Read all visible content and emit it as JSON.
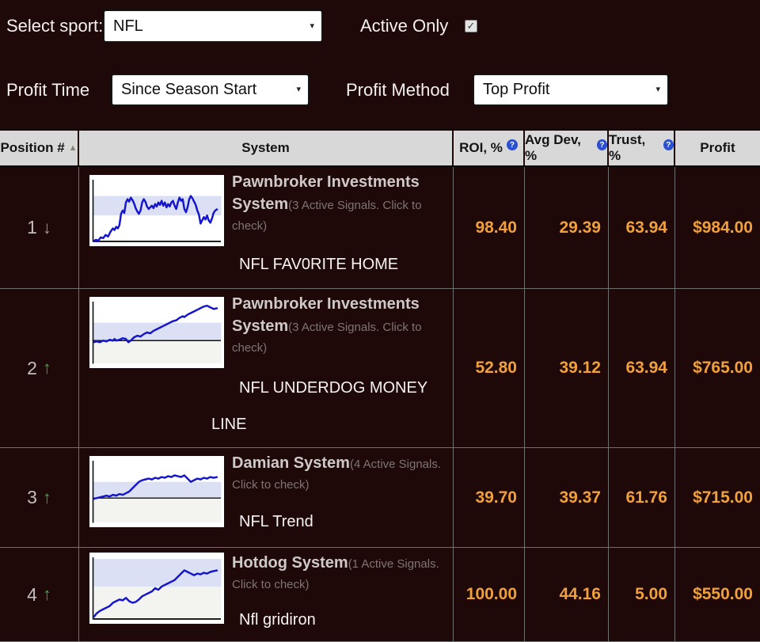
{
  "controls": {
    "select_sport_label": "Select sport:",
    "sport_value": "NFL",
    "active_only_label": "Active Only",
    "active_only_checked": true,
    "checkmark": "✓",
    "profit_time_label": "Profit Time",
    "profit_time_value": "Since Season Start",
    "profit_method_label": "Profit Method",
    "profit_method_value": "Top Profit",
    "caret": "▾"
  },
  "table": {
    "headers": {
      "position": "Position #",
      "system": "System",
      "roi": "ROI, %",
      "avg_dev": "Avg Dev, %",
      "trust": "Trust, %",
      "profit": "Profit"
    },
    "sort_icon": "▲",
    "help_icon": "?",
    "rows": [
      {
        "position": "1",
        "trend": "down",
        "name": "Pawnbroker Investments System",
        "signals_note": "(3 Active Signals. Click to check)",
        "subtitle": "NFL FAV0RITE HOME",
        "roi": "98.40",
        "avg_dev": "29.39",
        "trust": "63.94",
        "profit": "$984.00",
        "spark": {
          "band": [
            22,
            46
          ],
          "baseline": null,
          "x_axis": true,
          "gray_below": null,
          "points": [
            [
              2,
              78
            ],
            [
              5,
              76
            ],
            [
              8,
              77
            ],
            [
              11,
              73
            ],
            [
              14,
              74
            ],
            [
              17,
              70
            ],
            [
              20,
              72
            ],
            [
              23,
              66
            ],
            [
              26,
              62
            ],
            [
              28,
              64
            ],
            [
              30,
              60
            ],
            [
              32,
              62
            ],
            [
              34,
              58
            ],
            [
              36,
              44
            ],
            [
              38,
              40
            ],
            [
              40,
              43
            ],
            [
              42,
              30
            ],
            [
              44,
              26
            ],
            [
              46,
              29
            ],
            [
              48,
              24
            ],
            [
              50,
              27
            ],
            [
              52,
              31
            ],
            [
              54,
              37
            ],
            [
              56,
              41
            ],
            [
              58,
              44
            ],
            [
              60,
              40
            ],
            [
              62,
              30
            ],
            [
              64,
              26
            ],
            [
              66,
              29
            ],
            [
              68,
              35
            ],
            [
              70,
              38
            ],
            [
              72,
              36
            ],
            [
              74,
              34
            ],
            [
              76,
              37
            ],
            [
              78,
              32
            ],
            [
              80,
              35
            ],
            [
              82,
              30
            ],
            [
              84,
              33
            ],
            [
              86,
              28
            ],
            [
              88,
              34
            ],
            [
              90,
              30
            ],
            [
              92,
              36
            ],
            [
              94,
              32
            ],
            [
              96,
              35
            ],
            [
              98,
              30
            ],
            [
              100,
              28
            ],
            [
              102,
              34
            ],
            [
              104,
              38
            ],
            [
              106,
              30
            ],
            [
              108,
              24
            ],
            [
              110,
              28
            ],
            [
              112,
              26
            ],
            [
              114,
              38
            ],
            [
              116,
              42
            ],
            [
              118,
              36
            ],
            [
              120,
              26
            ],
            [
              122,
              22
            ],
            [
              124,
              25
            ],
            [
              126,
              29
            ],
            [
              128,
              33
            ],
            [
              130,
              40
            ],
            [
              132,
              45
            ],
            [
              134,
              56
            ],
            [
              136,
              52
            ],
            [
              138,
              48
            ],
            [
              140,
              51
            ],
            [
              142,
              46
            ],
            [
              144,
              52
            ],
            [
              146,
              55
            ],
            [
              148,
              50
            ],
            [
              150,
              43
            ],
            [
              152,
              40
            ],
            [
              155,
              38
            ]
          ]
        }
      },
      {
        "position": "2",
        "trend": "up",
        "name": "Pawnbroker Investments System",
        "signals_note": "(3 Active Signals. Click to check)",
        "subtitle": "NFL UNDERDOG MONEY\nLINE",
        "roi": "52.80",
        "avg_dev": "39.12",
        "trust": "63.94",
        "profit": "$765.00",
        "spark": {
          "band": [
            28,
            50
          ],
          "baseline": 50,
          "x_axis": false,
          "gray_below": [
            50,
            78
          ],
          "points": [
            [
              2,
              52
            ],
            [
              6,
              51
            ],
            [
              10,
              52
            ],
            [
              14,
              50
            ],
            [
              18,
              51
            ],
            [
              22,
              49
            ],
            [
              26,
              50
            ],
            [
              28,
              48
            ],
            [
              30,
              50
            ],
            [
              34,
              49
            ],
            [
              38,
              47
            ],
            [
              42,
              48
            ],
            [
              45,
              52
            ],
            [
              48,
              50
            ],
            [
              52,
              46
            ],
            [
              56,
              44
            ],
            [
              60,
              45
            ],
            [
              64,
              42
            ],
            [
              68,
              40
            ],
            [
              72,
              41
            ],
            [
              76,
              38
            ],
            [
              80,
              36
            ],
            [
              84,
              34
            ],
            [
              88,
              32
            ],
            [
              92,
              30
            ],
            [
              96,
              28
            ],
            [
              100,
              26
            ],
            [
              104,
              25
            ],
            [
              108,
              22
            ],
            [
              112,
              20
            ],
            [
              114,
              21
            ],
            [
              118,
              18
            ],
            [
              122,
              16
            ],
            [
              126,
              14
            ],
            [
              130,
              12
            ],
            [
              134,
              10
            ],
            [
              138,
              8
            ],
            [
              142,
              7
            ],
            [
              146,
              9
            ],
            [
              150,
              11
            ],
            [
              155,
              10
            ]
          ]
        }
      },
      {
        "position": "3",
        "trend": "up",
        "name": "Damian System",
        "signals_note": "(4 Active Signals. Click to check)",
        "subtitle": "NFL Trend",
        "roi": "39.70",
        "avg_dev": "39.37",
        "trust": "61.76",
        "profit": "$715.00",
        "spark": {
          "band": [
            28,
            48
          ],
          "baseline": 48,
          "x_axis": false,
          "gray_below": [
            48,
            78
          ],
          "points": [
            [
              2,
              49
            ],
            [
              6,
              48
            ],
            [
              10,
              47
            ],
            [
              14,
              46
            ],
            [
              18,
              45
            ],
            [
              22,
              46
            ],
            [
              26,
              44
            ],
            [
              30,
              45
            ],
            [
              34,
              43
            ],
            [
              38,
              44
            ],
            [
              42,
              42
            ],
            [
              46,
              40
            ],
            [
              50,
              36
            ],
            [
              54,
              32
            ],
            [
              58,
              28
            ],
            [
              62,
              26
            ],
            [
              66,
              25
            ],
            [
              70,
              24
            ],
            [
              74,
              25
            ],
            [
              78,
              23
            ],
            [
              82,
              24
            ],
            [
              86,
              22
            ],
            [
              90,
              23
            ],
            [
              94,
              21
            ],
            [
              98,
              22
            ],
            [
              102,
              20
            ],
            [
              106,
              21
            ],
            [
              110,
              22
            ],
            [
              114,
              20
            ],
            [
              118,
              24
            ],
            [
              122,
              28
            ],
            [
              126,
              26
            ],
            [
              130,
              24
            ],
            [
              134,
              25
            ],
            [
              138,
              23
            ],
            [
              142,
              24
            ],
            [
              146,
              22
            ],
            [
              150,
              23
            ],
            [
              155,
              22
            ]
          ]
        }
      },
      {
        "position": "4",
        "trend": "up",
        "name": "Hotdog System",
        "signals_note": "(1 Active Signals. Click to check)",
        "subtitle": "Nfl gridiron",
        "roi": "100.00",
        "avg_dev": "44.16",
        "trust": "5.00",
        "profit": "$550.00",
        "spark": {
          "band": [
            4,
            38
          ],
          "baseline": null,
          "x_axis": true,
          "gray_below": [
            38,
            78
          ],
          "points": [
            [
              2,
              76
            ],
            [
              6,
              71
            ],
            [
              10,
              68
            ],
            [
              14,
              66
            ],
            [
              18,
              64
            ],
            [
              22,
              62
            ],
            [
              26,
              58
            ],
            [
              30,
              56
            ],
            [
              34,
              54
            ],
            [
              38,
              55
            ],
            [
              42,
              52
            ],
            [
              46,
              56
            ],
            [
              50,
              58
            ],
            [
              54,
              57
            ],
            [
              58,
              54
            ],
            [
              62,
              50
            ],
            [
              66,
              48
            ],
            [
              70,
              46
            ],
            [
              74,
              44
            ],
            [
              78,
              40
            ],
            [
              82,
              42
            ],
            [
              86,
              38
            ],
            [
              90,
              36
            ],
            [
              94,
              34
            ],
            [
              98,
              32
            ],
            [
              102,
              30
            ],
            [
              106,
              26
            ],
            [
              110,
              22
            ],
            [
              114,
              18
            ],
            [
              118,
              20
            ],
            [
              122,
              22
            ],
            [
              126,
              24
            ],
            [
              130,
              22
            ],
            [
              134,
              23
            ],
            [
              138,
              21
            ],
            [
              142,
              22
            ],
            [
              146,
              20
            ],
            [
              150,
              19
            ],
            [
              155,
              18
            ]
          ]
        }
      }
    ]
  },
  "colors": {
    "background": "#1f0808",
    "header_bg": "#d8d8d8",
    "value_orange": "#f0a13c",
    "trend_up_green": "#2cb42c",
    "trend_down_gray": "#a09898",
    "spark_line_blue": "#1515cd",
    "spark_band": "#dbe0f5",
    "spark_gray": "#f3f3f0"
  }
}
